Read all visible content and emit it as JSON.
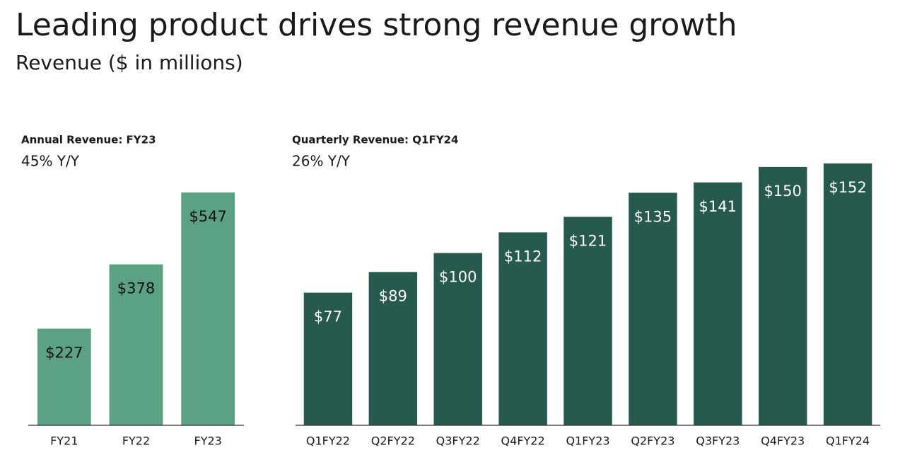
{
  "title": "Leading product drives strong revenue growth",
  "subtitle": "Revenue ($ in millions)",
  "chart_data": [
    {
      "type": "bar",
      "title": "Annual Revenue: FY23",
      "subtitle": "45% Y/Y",
      "categories": [
        "FY21",
        "FY22",
        "FY23"
      ],
      "values": [
        227,
        378,
        547
      ],
      "value_labels": [
        "$227",
        "$378",
        "$547"
      ],
      "color": "#5aa283"
    },
    {
      "type": "bar",
      "title": "Quarterly Revenue: Q1FY24",
      "subtitle": "26% Y/Y",
      "categories": [
        "Q1FY22",
        "Q2FY22",
        "Q3FY22",
        "Q4FY22",
        "Q1FY23",
        "Q2FY23",
        "Q3FY23",
        "Q4FY23",
        "Q1FY24"
      ],
      "values": [
        77,
        89,
        100,
        112,
        121,
        135,
        141,
        150,
        152
      ],
      "value_labels": [
        "$77",
        "$89",
        "$100",
        "$112",
        "$121",
        "$135",
        "$141",
        "$150",
        "$152"
      ],
      "color": "#265a4e"
    }
  ]
}
